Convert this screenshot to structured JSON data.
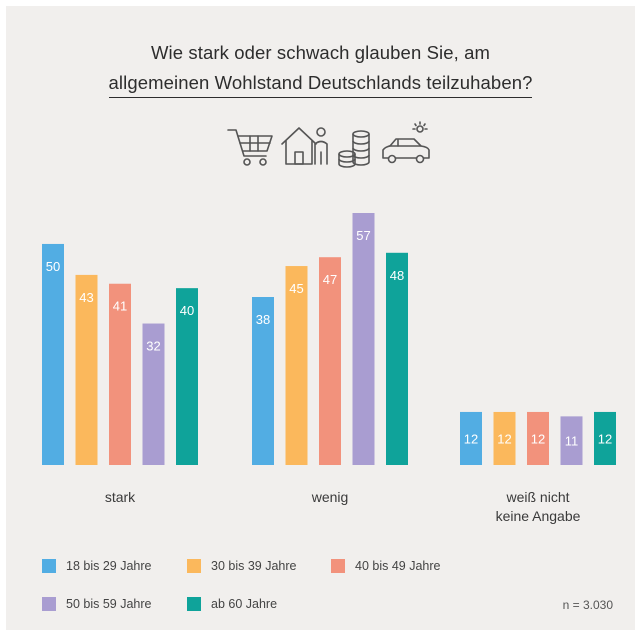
{
  "title_line1": "Wie stark oder schwach glauben Sie, am",
  "title_line2": "allgemeinen Wohlstand Deutschlands teilzuhaben?",
  "icons": [
    "shopping-cart-icon",
    "house-person-icon",
    "coin-stack-icon",
    "car-sun-icon"
  ],
  "note": "n = 3.030",
  "colors": [
    "#52ade3",
    "#fbb85c",
    "#f2927c",
    "#a99dd1",
    "#0fa39a"
  ],
  "chart_data": {
    "type": "bar",
    "categories": [
      "stark",
      "wenig",
      "weiß nicht\nkeine Angabe"
    ],
    "category_lines": [
      [
        "stark"
      ],
      [
        "wenig"
      ],
      [
        "weiß nicht",
        "keine Angabe"
      ]
    ],
    "series": [
      {
        "name": "18 bis 29 Jahre",
        "values": [
          50,
          38,
          12
        ]
      },
      {
        "name": "30 bis 39 Jahre",
        "values": [
          43,
          45,
          12
        ]
      },
      {
        "name": "40 bis 49 Jahre",
        "values": [
          41,
          47,
          12
        ]
      },
      {
        "name": "50 bis 59 Jahre",
        "values": [
          32,
          57,
          11
        ]
      },
      {
        "name": "ab 60 Jahre",
        "values": [
          40,
          48,
          12
        ]
      }
    ],
    "ylim": [
      0,
      57
    ],
    "grid": false,
    "legend_position": "bottom"
  }
}
